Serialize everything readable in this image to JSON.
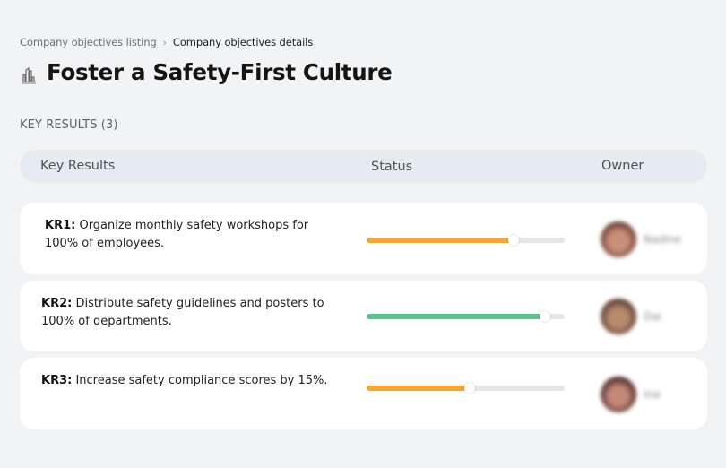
{
  "breadcrumb": {
    "items": [
      {
        "label": "Company objectives listing"
      },
      {
        "label": "Company objectives details"
      }
    ],
    "separator": "›"
  },
  "objective": {
    "icon": "building-chart-icon",
    "title": "Foster a Safety-First Culture"
  },
  "key_results_section": {
    "label": "KEY RESULTS (3)",
    "count": 3
  },
  "table": {
    "headers": {
      "key_results": "Key Results",
      "status": "Status",
      "owner": "Owner"
    },
    "rows": [
      {
        "code": "KR1:",
        "text": " Organize monthly safety workshops for 100% of employees.",
        "progress": 74,
        "progress_width": "74%",
        "bar_color": "#F7A632",
        "owner": {
          "name": "Nadine",
          "avatar_colors": [
            "#6b3b32",
            "#c98f7a"
          ]
        }
      },
      {
        "code": "KR2:",
        "text": " Distribute safety guidelines and posters to 100% of departments.",
        "progress": 90,
        "progress_width": "90%",
        "bar_color": "#5AC48E",
        "owner": {
          "name": "Dai",
          "avatar_colors": [
            "#5a3a2e",
            "#b88a6e"
          ]
        }
      },
      {
        "code": "KR3:",
        "text": " Increase safety compliance scores by 15%.",
        "progress": 52,
        "progress_width": "52%",
        "bar_color": "#F7A632",
        "owner": {
          "name": "Ina",
          "avatar_colors": [
            "#4a2a26",
            "#c48878"
          ]
        }
      }
    ]
  },
  "colors": {
    "background": "#f2f3f5",
    "header_bg": "#e6eaf1",
    "card_bg": "#ffffff",
    "track": "#e6e6e6",
    "orange": "#F7A632",
    "green": "#5AC48E"
  }
}
